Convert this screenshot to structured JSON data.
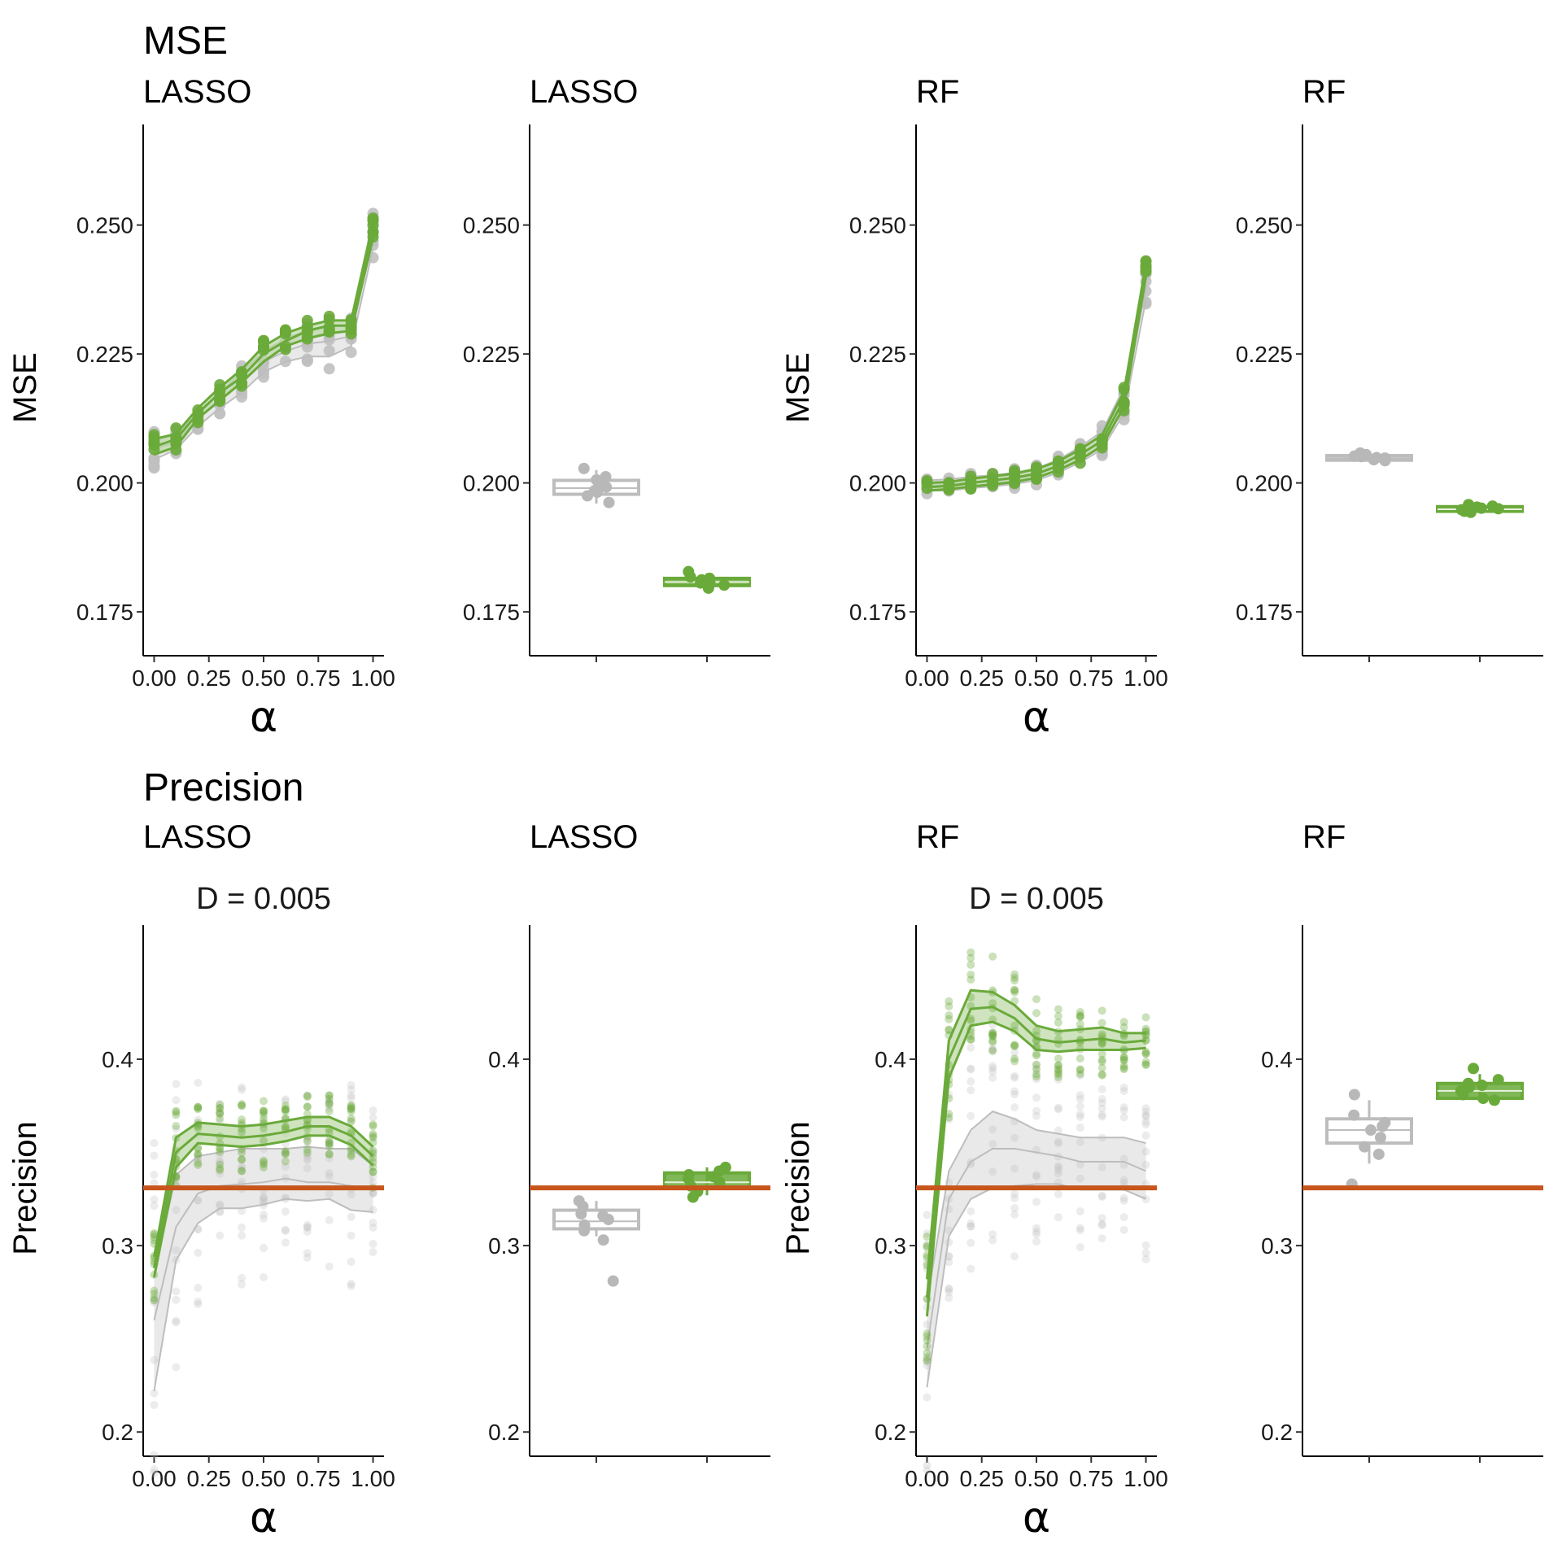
{
  "colors": {
    "green": "#6aaa3a",
    "green_band": "#b9d7a3",
    "grey": "#bdbdbd",
    "grey_band": "#e3e3e3",
    "grey_point": "#c0c0c0",
    "reference_line": "#c8551b"
  },
  "rows": [
    {
      "title": "MSE"
    },
    {
      "title": "Precision"
    }
  ],
  "chart_data": [
    {
      "type": "line",
      "row": "MSE",
      "title": "LASSO",
      "subtitle": "",
      "xlabel": "α",
      "ylabel": "MSE",
      "xlim": [
        -0.05,
        1.05
      ],
      "ylim": [
        0.1665,
        0.2695
      ],
      "xticks": [
        "0.00",
        "0.25",
        "0.50",
        "0.75",
        "1.00"
      ],
      "yticks": [
        "0.175",
        "0.200",
        "0.225",
        "0.250"
      ],
      "x": [
        0.0,
        0.1,
        0.2,
        0.3,
        0.4,
        0.5,
        0.6,
        0.7,
        0.8,
        0.9,
        1.0
      ],
      "series": [
        {
          "color_key": "grey",
          "lower": [
            0.2045,
            0.2065,
            0.211,
            0.2145,
            0.2175,
            0.2215,
            0.2235,
            0.2245,
            0.2245,
            0.2265,
            0.2455
          ],
          "median": [
            0.2065,
            0.208,
            0.2125,
            0.216,
            0.2195,
            0.2235,
            0.2255,
            0.227,
            0.2275,
            0.2285,
            0.248
          ],
          "upper": [
            0.2085,
            0.2095,
            0.2135,
            0.2175,
            0.2215,
            0.2255,
            0.228,
            0.2295,
            0.2305,
            0.2305,
            0.2505
          ]
        },
        {
          "color_key": "green",
          "lower": [
            0.2055,
            0.207,
            0.2125,
            0.216,
            0.2195,
            0.2235,
            0.2265,
            0.228,
            0.229,
            0.2295,
            0.2475
          ],
          "median": [
            0.207,
            0.2085,
            0.2135,
            0.2175,
            0.2205,
            0.225,
            0.2275,
            0.2295,
            0.2305,
            0.2305,
            0.249
          ],
          "upper": [
            0.2085,
            0.2095,
            0.2145,
            0.2185,
            0.222,
            0.2265,
            0.229,
            0.2305,
            0.2315,
            0.2315,
            0.2505
          ]
        }
      ]
    },
    {
      "type": "box",
      "row": "MSE",
      "title": "LASSO",
      "subtitle": "",
      "xlabel": "",
      "ylabel": "",
      "ylim": [
        0.1665,
        0.2695
      ],
      "yticks": [
        "0.175",
        "0.200",
        "0.225",
        "0.250"
      ],
      "boxes": [
        {
          "color_key": "grey",
          "whisker_low": 0.196,
          "q1": 0.1978,
          "median": 0.199,
          "q3": 0.2005,
          "whisker_high": 0.2025,
          "points": [
            0.2028,
            0.2012,
            0.1998,
            0.1985,
            0.1975,
            0.1962,
            0.1992,
            0.2006,
            0.1982
          ]
        },
        {
          "color_key": "green",
          "whisker_low": 0.1795,
          "q1": 0.1801,
          "median": 0.1808,
          "q3": 0.1815,
          "whisker_high": 0.1825,
          "points": [
            0.1828,
            0.1818,
            0.1812,
            0.1806,
            0.1802,
            0.1796,
            0.1809,
            0.1815,
            0.1804
          ]
        }
      ]
    },
    {
      "type": "line",
      "row": "MSE",
      "title": "RF",
      "subtitle": "",
      "xlabel": "α",
      "ylabel": "MSE",
      "xlim": [
        -0.05,
        1.05
      ],
      "ylim": [
        0.1665,
        0.2695
      ],
      "xticks": [
        "0.00",
        "0.25",
        "0.50",
        "0.75",
        "1.00"
      ],
      "yticks": [
        "0.175",
        "0.200",
        "0.225",
        "0.250"
      ],
      "x": [
        0.0,
        0.1,
        0.2,
        0.3,
        0.4,
        0.5,
        0.6,
        0.7,
        0.8,
        0.9,
        1.0
      ],
      "series": [
        {
          "color_key": "grey",
          "lower": [
            0.1985,
            0.1985,
            0.199,
            0.1993,
            0.1998,
            0.2005,
            0.202,
            0.204,
            0.2065,
            0.2135,
            0.2355
          ],
          "median": [
            0.1995,
            0.1996,
            0.2,
            0.2003,
            0.2008,
            0.2016,
            0.2032,
            0.2055,
            0.2082,
            0.216,
            0.238
          ],
          "upper": [
            0.2005,
            0.2007,
            0.2012,
            0.2015,
            0.202,
            0.2028,
            0.2045,
            0.207,
            0.21,
            0.2185,
            0.2405
          ]
        },
        {
          "color_key": "green",
          "lower": [
            0.1985,
            0.1988,
            0.1993,
            0.1997,
            0.2002,
            0.201,
            0.2025,
            0.2045,
            0.2072,
            0.2148,
            0.24
          ],
          "median": [
            0.1992,
            0.1994,
            0.2,
            0.2005,
            0.201,
            0.2018,
            0.2033,
            0.2055,
            0.2082,
            0.2162,
            0.2412
          ],
          "upper": [
            0.2,
            0.2002,
            0.2008,
            0.2013,
            0.2018,
            0.2027,
            0.2042,
            0.2065,
            0.2093,
            0.2177,
            0.2425
          ]
        }
      ]
    },
    {
      "type": "box",
      "row": "MSE",
      "title": "RF",
      "subtitle": "",
      "xlabel": "",
      "ylabel": "",
      "ylim": [
        0.1665,
        0.2695
      ],
      "yticks": [
        "0.175",
        "0.200",
        "0.225",
        "0.250"
      ],
      "boxes": [
        {
          "color_key": "grey",
          "whisker_low": 0.2042,
          "q1": 0.2044,
          "median": 0.2048,
          "q3": 0.2053,
          "whisker_high": 0.2058,
          "points": [
            0.2058,
            0.2055,
            0.2051,
            0.2048,
            0.2045,
            0.2043,
            0.2049,
            0.2052
          ]
        },
        {
          "color_key": "green",
          "whisker_low": 0.1942,
          "q1": 0.1945,
          "median": 0.1949,
          "q3": 0.1954,
          "whisker_high": 0.1958,
          "points": [
            0.1958,
            0.1955,
            0.1951,
            0.1948,
            0.1945,
            0.1943,
            0.195,
            0.1953
          ]
        }
      ]
    },
    {
      "type": "line",
      "row": "Precision",
      "title": "LASSO",
      "subtitle": "D = 0.005",
      "xlabel": "α",
      "ylabel": "Precision",
      "xlim": [
        -0.05,
        1.05
      ],
      "ylim": [
        0.187,
        0.472
      ],
      "xticks": [
        "0.00",
        "0.25",
        "0.50",
        "0.75",
        "1.00"
      ],
      "yticks": [
        "0.2",
        "0.3",
        "0.4"
      ],
      "reference_line": 0.331,
      "x": [
        0.0,
        0.1,
        0.2,
        0.3,
        0.4,
        0.5,
        0.6,
        0.7,
        0.8,
        0.9,
        1.0
      ],
      "series": [
        {
          "color_key": "grey",
          "lower": [
            0.222,
            0.292,
            0.312,
            0.32,
            0.32,
            0.322,
            0.325,
            0.324,
            0.325,
            0.319,
            0.318
          ],
          "median": [
            0.26,
            0.31,
            0.328,
            0.332,
            0.333,
            0.334,
            0.336,
            0.334,
            0.334,
            0.332,
            0.331
          ],
          "upper": [
            0.285,
            0.338,
            0.348,
            0.35,
            0.352,
            0.352,
            0.352,
            0.353,
            0.352,
            0.352,
            0.343
          ]
        },
        {
          "color_key": "green",
          "lower": [
            0.283,
            0.342,
            0.355,
            0.354,
            0.353,
            0.354,
            0.356,
            0.359,
            0.359,
            0.354,
            0.343
          ],
          "median": [
            0.288,
            0.35,
            0.36,
            0.359,
            0.358,
            0.359,
            0.361,
            0.364,
            0.364,
            0.359,
            0.348
          ],
          "upper": [
            0.294,
            0.358,
            0.366,
            0.365,
            0.364,
            0.365,
            0.367,
            0.369,
            0.369,
            0.364,
            0.353
          ]
        }
      ]
    },
    {
      "type": "box",
      "row": "Precision",
      "title": "LASSO",
      "subtitle": "",
      "xlabel": "",
      "ylabel": "",
      "ylim": [
        0.187,
        0.472
      ],
      "yticks": [
        "0.2",
        "0.3",
        "0.4"
      ],
      "reference_line": 0.331,
      "boxes": [
        {
          "color_key": "grey",
          "whisker_low": 0.305,
          "q1": 0.309,
          "median": 0.313,
          "q3": 0.319,
          "whisker_high": 0.324,
          "points": [
            0.324,
            0.321,
            0.317,
            0.314,
            0.311,
            0.308,
            0.303,
            0.281,
            0.316
          ]
        },
        {
          "color_key": "green",
          "whisker_low": 0.327,
          "q1": 0.331,
          "median": 0.334,
          "q3": 0.339,
          "whisker_high": 0.342,
          "points": [
            0.342,
            0.34,
            0.338,
            0.336,
            0.334,
            0.332,
            0.329,
            0.326,
            0.337
          ]
        }
      ]
    },
    {
      "type": "line",
      "row": "Precision",
      "title": "RF",
      "subtitle": "D = 0.005",
      "xlabel": "α",
      "ylabel": "Precision",
      "xlim": [
        -0.05,
        1.05
      ],
      "ylim": [
        0.187,
        0.472
      ],
      "xticks": [
        "0.00",
        "0.25",
        "0.50",
        "0.75",
        "1.00"
      ],
      "yticks": [
        "0.2",
        "0.3",
        "0.4"
      ],
      "reference_line": 0.331,
      "x": [
        0.0,
        0.1,
        0.2,
        0.3,
        0.4,
        0.5,
        0.6,
        0.7,
        0.8,
        0.9,
        1.0
      ],
      "series": [
        {
          "color_key": "grey",
          "lower": [
            0.224,
            0.305,
            0.325,
            0.331,
            0.332,
            0.333,
            0.333,
            0.33,
            0.33,
            0.33,
            0.325
          ],
          "median": [
            0.245,
            0.325,
            0.345,
            0.352,
            0.352,
            0.35,
            0.348,
            0.345,
            0.345,
            0.345,
            0.34
          ],
          "upper": [
            0.27,
            0.34,
            0.362,
            0.372,
            0.368,
            0.362,
            0.36,
            0.358,
            0.358,
            0.358,
            0.355
          ]
        },
        {
          "color_key": "green",
          "lower": [
            0.262,
            0.39,
            0.418,
            0.42,
            0.415,
            0.405,
            0.404,
            0.405,
            0.405,
            0.405,
            0.406
          ],
          "median": [
            0.272,
            0.4,
            0.427,
            0.428,
            0.422,
            0.411,
            0.409,
            0.41,
            0.411,
            0.409,
            0.41
          ],
          "upper": [
            0.282,
            0.41,
            0.437,
            0.436,
            0.429,
            0.418,
            0.415,
            0.416,
            0.417,
            0.414,
            0.414
          ]
        }
      ]
    },
    {
      "type": "box",
      "row": "Precision",
      "title": "RF",
      "subtitle": "",
      "xlabel": "",
      "ylabel": "",
      "ylim": [
        0.187,
        0.472
      ],
      "yticks": [
        "0.2",
        "0.3",
        "0.4"
      ],
      "reference_line": 0.331,
      "boxes": [
        {
          "color_key": "grey",
          "whisker_low": 0.344,
          "q1": 0.355,
          "median": 0.362,
          "q3": 0.368,
          "whisker_high": 0.378,
          "points": [
            0.381,
            0.37,
            0.366,
            0.362,
            0.358,
            0.353,
            0.349,
            0.333,
            0.364
          ]
        },
        {
          "color_key": "green",
          "whisker_low": 0.378,
          "q1": 0.379,
          "median": 0.383,
          "q3": 0.387,
          "whisker_high": 0.392,
          "points": [
            0.395,
            0.389,
            0.387,
            0.385,
            0.383,
            0.381,
            0.379,
            0.378,
            0.386
          ]
        }
      ]
    }
  ]
}
